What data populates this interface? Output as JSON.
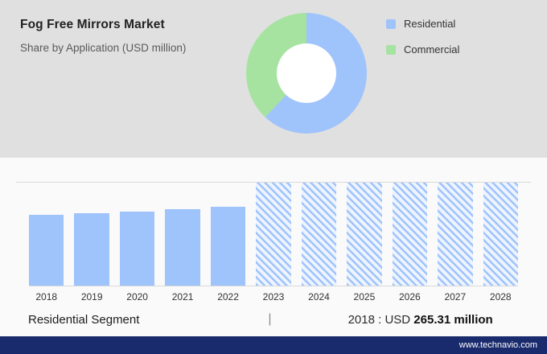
{
  "header": {
    "title": "Fog Free Mirrors Market",
    "subtitle": "Share by Application (USD million)"
  },
  "legend": {
    "items": [
      {
        "label": "Residential",
        "color": "#9fc3fb"
      },
      {
        "label": "Commercial",
        "color": "#a6e3a1"
      }
    ]
  },
  "chart_data": [
    {
      "type": "pie",
      "title": "Share by Application (USD million)",
      "labels": [
        "Residential",
        "Commercial"
      ],
      "values": [
        62,
        38
      ],
      "colors": [
        "#9fc3fb",
        "#a6e3a1"
      ],
      "hole": 0.5,
      "legend_position": "right"
    },
    {
      "type": "bar",
      "title": "Residential Segment (USD million)",
      "categories": [
        "2018",
        "2019",
        "2020",
        "2021",
        "2022",
        "2023",
        "2024",
        "2025",
        "2026",
        "2027",
        "2028"
      ],
      "values": [
        265.31,
        271,
        276,
        285,
        296,
        385,
        385,
        385,
        385,
        385,
        385
      ],
      "forecast_start_index": 5,
      "bar_color": "#9fc3fb",
      "forecast_style": "hatched",
      "xlabel": "",
      "ylabel": "",
      "ylim": [
        0,
        385
      ],
      "grid": false
    }
  ],
  "footer": {
    "segment_label": "Residential Segment",
    "divider": "|",
    "stat_prefix": "2018 : USD",
    "stat_value": "265.31",
    "stat_suffix": "million",
    "website": "www.technavio.com"
  },
  "colors": {
    "header_background": "#e0e0e0",
    "residential_blue": "#9fc3fb",
    "commercial_green": "#a6e3a1",
    "brand_bar_navy": "#1a2b6d"
  }
}
